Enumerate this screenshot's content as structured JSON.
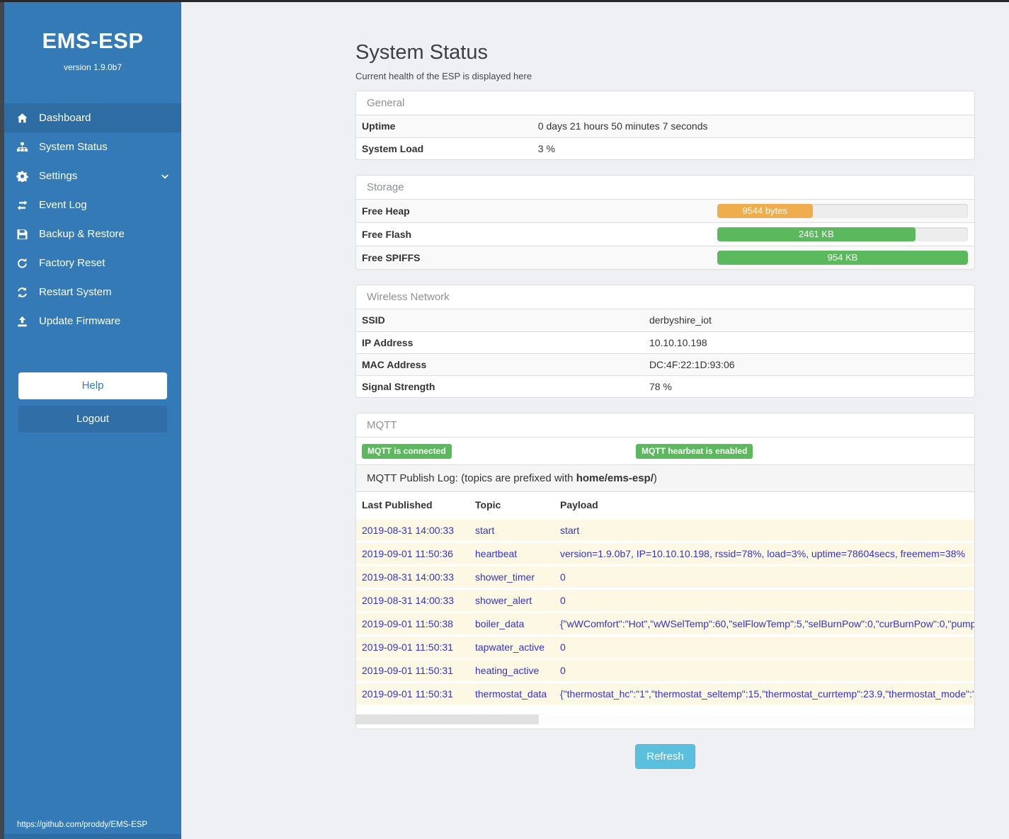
{
  "sidebar": {
    "brand": "EMS-ESP",
    "version": "version 1.9.0b7",
    "items": [
      {
        "label": "Dashboard",
        "icon": "home-icon",
        "active": true,
        "chevron": false
      },
      {
        "label": "System Status",
        "icon": "sitemap-icon",
        "active": false,
        "chevron": false
      },
      {
        "label": "Settings",
        "icon": "gear-icon",
        "active": false,
        "chevron": true
      },
      {
        "label": "Event Log",
        "icon": "exchange-icon",
        "active": false,
        "chevron": false
      },
      {
        "label": "Backup & Restore",
        "icon": "save-icon",
        "active": false,
        "chevron": false
      },
      {
        "label": "Factory Reset",
        "icon": "rotate-icon",
        "active": false,
        "chevron": false
      },
      {
        "label": "Restart System",
        "icon": "refresh-icon",
        "active": false,
        "chevron": false
      },
      {
        "label": "Update Firmware",
        "icon": "upload-icon",
        "active": false,
        "chevron": false
      }
    ],
    "help_label": "Help",
    "logout_label": "Logout",
    "footer_link": "https://github.com/proddy/EMS-ESP"
  },
  "page": {
    "title": "System Status",
    "subtitle": "Current health of the ESP is displayed here"
  },
  "panels": {
    "general": {
      "title": "General",
      "rows": [
        {
          "label": "Uptime",
          "value": "0 days 21 hours 50 minutes 7 seconds"
        },
        {
          "label": "System Load",
          "value": "3 %"
        }
      ]
    },
    "storage": {
      "title": "Storage",
      "rows": [
        {
          "label": "Free Heap",
          "bar_text": "9544 bytes",
          "percent": 38,
          "color": "#f0ad4e"
        },
        {
          "label": "Free Flash",
          "bar_text": "2461 KB",
          "percent": 79,
          "color": "#5cb85c"
        },
        {
          "label": "Free SPIFFS",
          "bar_text": "954 KB",
          "percent": 100,
          "color": "#5cb85c"
        }
      ]
    },
    "wireless": {
      "title": "Wireless Network",
      "rows": [
        {
          "label": "SSID",
          "value": "derbyshire_iot"
        },
        {
          "label": "IP Address",
          "value": "10.10.10.198"
        },
        {
          "label": "MAC Address",
          "value": "DC:4F:22:1D:93:06"
        },
        {
          "label": "Signal Strength",
          "value": "78 %"
        }
      ]
    },
    "mqtt": {
      "title": "MQTT",
      "badges": [
        "MQTT is connected",
        "MQTT hearbeat is enabled"
      ],
      "log_heading_prefix": "MQTT Publish Log: (topics are prefixed with ",
      "log_heading_bold": "home/ems-esp/",
      "log_heading_suffix": ")",
      "columns": [
        "Last Published",
        "Topic",
        "Payload"
      ],
      "rows": [
        {
          "time": "2019-08-31 14:00:33",
          "topic": "start",
          "payload": "start"
        },
        {
          "time": "2019-09-01 11:50:36",
          "topic": "heartbeat",
          "payload": "version=1.9.0b7, IP=10.10.10.198, rssid=78%, load=3%, uptime=78604secs, freemem=38%"
        },
        {
          "time": "2019-08-31 14:00:33",
          "topic": "shower_timer",
          "payload": "0"
        },
        {
          "time": "2019-08-31 14:00:33",
          "topic": "shower_alert",
          "payload": "0"
        },
        {
          "time": "2019-09-01 11:50:38",
          "topic": "boiler_data",
          "payload": "{\"wWComfort\":\"Hot\",\"wWSelTemp\":60,\"selFlowTemp\":5,\"selBurnPow\":0,\"curBurnPow\":0,\"pump"
        },
        {
          "time": "2019-09-01 11:50:31",
          "topic": "tapwater_active",
          "payload": "0"
        },
        {
          "time": "2019-09-01 11:50:31",
          "topic": "heating_active",
          "payload": "0"
        },
        {
          "time": "2019-09-01 11:50:31",
          "topic": "thermostat_data",
          "payload": "{\"thermostat_hc\":\"1\",\"thermostat_seltemp\":15,\"thermostat_currtemp\":23.9,\"thermostat_mode\":\""
        }
      ]
    }
  },
  "refresh_label": "Refresh",
  "colors": {
    "sidebar": "#337ab7",
    "sidebar_active": "#2e6da4",
    "badge_green": "#5cb85c",
    "heap_orange": "#f0ad4e",
    "flash_green": "#5cb85c",
    "refresh_blue": "#5bc0de",
    "log_text_blue": "#3333cc"
  }
}
